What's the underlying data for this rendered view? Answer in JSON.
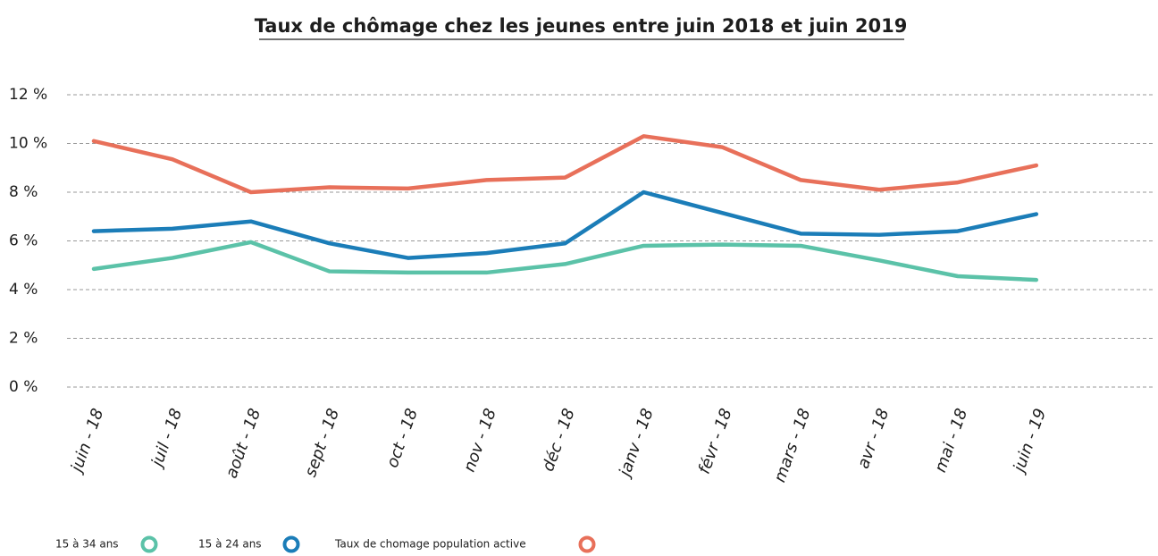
{
  "chart_data": {
    "type": "line",
    "title": "Taux de chômage chez les jeunes entre juin 2018 et juin 2019",
    "categories": [
      "juin - 18",
      "juil - 18",
      "août - 18",
      "sept - 18",
      "oct - 18",
      "nov - 18",
      "déc - 18",
      "janv - 18",
      "févr - 18",
      "mars - 18",
      "avr - 18",
      "mai - 18",
      "juin - 19"
    ],
    "series": [
      {
        "name": "15 à 34 ans",
        "color": "#5bc2a8",
        "values": [
          4.85,
          5.3,
          5.95,
          4.75,
          4.7,
          4.7,
          5.05,
          5.8,
          5.85,
          5.8,
          5.2,
          4.55,
          4.4
        ]
      },
      {
        "name": "15 à 24 ans",
        "color": "#1b7db8",
        "values": [
          6.4,
          6.5,
          6.8,
          5.9,
          5.3,
          5.5,
          5.9,
          8.0,
          7.15,
          6.3,
          6.25,
          6.4,
          7.1
        ]
      },
      {
        "name": "Taux de chomage population active",
        "color": "#e8705a",
        "values": [
          10.1,
          9.35,
          8.0,
          8.2,
          8.15,
          8.5,
          8.6,
          10.3,
          9.85,
          8.5,
          8.1,
          8.4,
          9.1
        ]
      }
    ],
    "ylim": [
      0,
      12
    ],
    "yticks": [
      {
        "value": 0,
        "label": "0 %"
      },
      {
        "value": 2,
        "label": "2 %"
      },
      {
        "value": 4,
        "label": "4 %"
      },
      {
        "value": 6,
        "label": "6 %"
      },
      {
        "value": 8,
        "label": "8 %"
      },
      {
        "value": 10,
        "label": "10 %"
      },
      {
        "value": 12,
        "label": "12 %"
      }
    ],
    "grid": true,
    "legend": "bottom"
  }
}
